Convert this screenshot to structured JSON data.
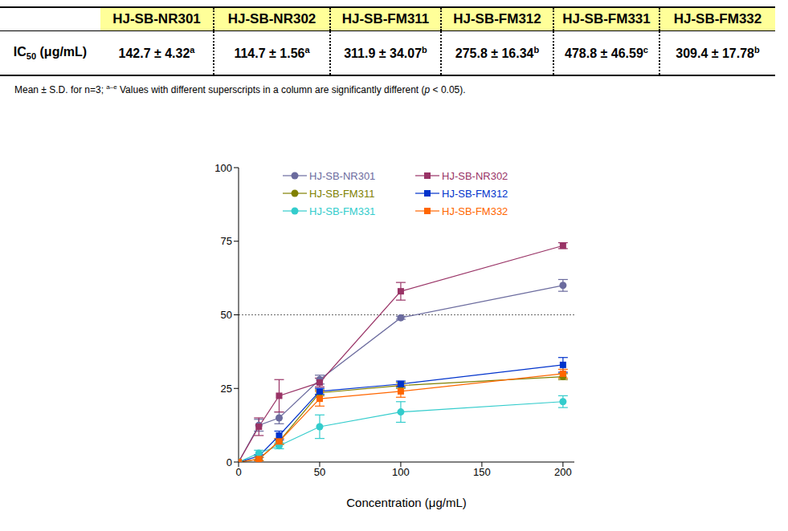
{
  "table": {
    "row_label": {
      "text": "IC",
      "sub": "50",
      "rest": " (μg/mL)"
    },
    "separator": " ± ",
    "columns": [
      "HJ-SB-NR301",
      "HJ-SB-NR302",
      "HJ-SB-FM311",
      "HJ-SB-FM312",
      "HJ-SB-FM331",
      "HJ-SB-FM332"
    ],
    "cells": [
      {
        "mean": 142.7,
        "sd": 4.32,
        "group": "a"
      },
      {
        "mean": 114.7,
        "sd": 1.56,
        "group": "a"
      },
      {
        "mean": 311.9,
        "sd": 34.07,
        "group": "b"
      },
      {
        "mean": 275.8,
        "sd": 16.34,
        "group": "b"
      },
      {
        "mean": 478.8,
        "sd": 46.59,
        "group": "c"
      },
      {
        "mean": 309.4,
        "sd": 17.78,
        "group": "b"
      }
    ]
  },
  "footnote": {
    "pre": "Mean ± S.D. for n=3; ",
    "sup": "a–e",
    "mid": " Values with different superscripts in a column are significantly different (",
    "italic": "p",
    "post": " < 0.05)."
  },
  "chart_data": {
    "type": "line",
    "x_label": "Concentration (μg/mL)",
    "x": [
      0,
      12.5,
      25,
      50,
      100,
      200
    ],
    "xlim": [
      0,
      207
    ],
    "xticks": [
      0,
      50,
      100,
      150,
      200
    ],
    "ylim": [
      0,
      100
    ],
    "yticks": [
      0,
      25,
      50,
      75,
      100
    ],
    "hline": 50,
    "legend": "upper left",
    "grid": false,
    "series": [
      {
        "name": "HJ-SB-NR301",
        "color": "#6b6b9e",
        "marker": "circle",
        "line_style": "solid",
        "values": [
          0,
          12.5,
          15,
          28,
          49,
          60
        ],
        "errors": [
          0,
          2,
          2,
          1.5,
          0.5,
          2
        ]
      },
      {
        "name": "HJ-SB-NR302",
        "color": "#993366",
        "marker": "square",
        "line_style": "solid",
        "values": [
          0,
          12,
          22.5,
          27,
          58,
          73.5
        ],
        "errors": [
          0,
          3,
          5.5,
          1.5,
          3,
          1
        ]
      },
      {
        "name": "HJ-SB-FM311",
        "color": "#808000",
        "marker": "circle",
        "line_style": "solid",
        "values": [
          0,
          1,
          7,
          23.5,
          26,
          29
        ],
        "errors": [
          0,
          0.5,
          1,
          1,
          1,
          1
        ]
      },
      {
        "name": "HJ-SB-FM312",
        "color": "#0033cc",
        "marker": "square",
        "line_style": "solid",
        "values": [
          0,
          2,
          9,
          24,
          26.5,
          33
        ],
        "errors": [
          0,
          0.5,
          1.5,
          1,
          1,
          2.5
        ]
      },
      {
        "name": "HJ-SB-FM331",
        "color": "#33cccc",
        "marker": "circle",
        "line_style": "solid",
        "values": [
          0,
          3,
          5.5,
          12,
          17,
          20.5
        ],
        "errors": [
          0,
          1,
          1,
          4,
          3.5,
          2
        ]
      },
      {
        "name": "HJ-SB-FM332",
        "color": "#ff6600",
        "marker": "square",
        "line_style": "solid",
        "values": [
          0,
          1,
          7,
          21.5,
          24,
          30
        ],
        "errors": [
          0,
          0.5,
          1,
          2.5,
          2,
          1.5
        ]
      }
    ]
  }
}
